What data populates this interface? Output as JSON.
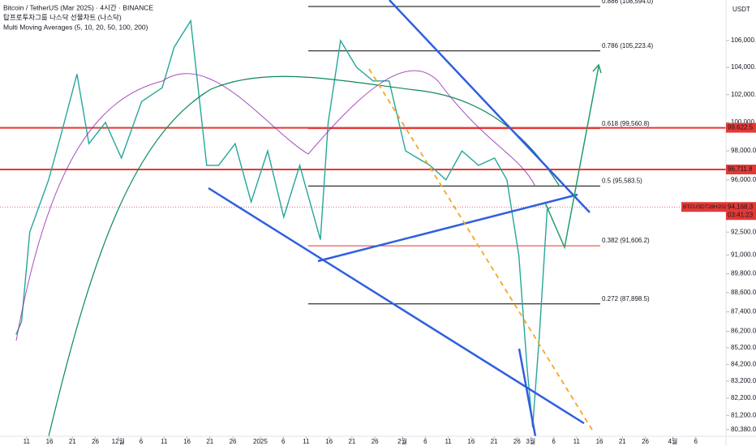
{
  "chart_data": {
    "type": "line",
    "title": "Bitcoin / TetherUS (Mar 2025) · 4시간 · BINANCE",
    "subtitle": "탑프로투자그룹 나스닥 선물차트 (나스닥)",
    "indicator": "Multi Moving Averages (5, 10, 20, 50, 100, 200)",
    "y_axis_label": "USDT",
    "log": true,
    "xlim": [
      -5.8,
      152.6
    ],
    "ylim": [
      80000,
      109100
    ],
    "xticks": [
      {
        "value": 0,
        "label": "11"
      },
      {
        "value": 5,
        "label": "16"
      },
      {
        "value": 10,
        "label": "21"
      },
      {
        "value": 15,
        "label": "26"
      },
      {
        "value": 20,
        "label": "12월"
      },
      {
        "value": 25,
        "label": "6"
      },
      {
        "value": 30,
        "label": "11"
      },
      {
        "value": 35,
        "label": "16"
      },
      {
        "value": 40,
        "label": "21"
      },
      {
        "value": 45,
        "label": "26"
      },
      {
        "value": 51,
        "label": "2025"
      },
      {
        "value": 56,
        "label": "6"
      },
      {
        "value": 61,
        "label": "11"
      },
      {
        "value": 66,
        "label": "16"
      },
      {
        "value": 71,
        "label": "21"
      },
      {
        "value": 76,
        "label": "26"
      },
      {
        "value": 82,
        "label": "2월"
      },
      {
        "value": 87,
        "label": "6"
      },
      {
        "value": 92,
        "label": "11"
      },
      {
        "value": 97,
        "label": "16"
      },
      {
        "value": 102,
        "label": "21"
      },
      {
        "value": 107,
        "label": "26"
      },
      {
        "value": 110,
        "label": "3월"
      },
      {
        "value": 115,
        "label": "6"
      },
      {
        "value": 120,
        "label": "11"
      },
      {
        "value": 125,
        "label": "16"
      },
      {
        "value": 130,
        "label": "21"
      },
      {
        "value": 135,
        "label": "26"
      },
      {
        "value": 141,
        "label": "4월"
      },
      {
        "value": 146,
        "label": "6"
      }
    ],
    "yticks": [
      {
        "value": 106000,
        "label": "106,000.0"
      },
      {
        "value": 104000,
        "label": "104,000.0"
      },
      {
        "value": 102000,
        "label": "102,000.0"
      },
      {
        "value": 100000,
        "label": "100,000.0"
      },
      {
        "value": 98000,
        "label": "98,000.0"
      },
      {
        "value": 96000,
        "label": "96,000.0"
      },
      {
        "value": 92500,
        "label": "92,500.0"
      },
      {
        "value": 91000,
        "label": "91,000.0"
      },
      {
        "value": 89800,
        "label": "89,800.0"
      },
      {
        "value": 88600,
        "label": "88,600.0"
      },
      {
        "value": 87400,
        "label": "87,400.0"
      },
      {
        "value": 86200,
        "label": "86,200.0"
      },
      {
        "value": 85200,
        "label": "85,200.0"
      },
      {
        "value": 84200,
        "label": "84,200.0"
      },
      {
        "value": 83200,
        "label": "83,200.0"
      },
      {
        "value": 82200,
        "label": "82,200.0"
      },
      {
        "value": 81200,
        "label": "81,200.0"
      },
      {
        "value": 80380,
        "label": "80,380.0"
      }
    ],
    "series": [
      {
        "name": "BTCUSDT",
        "color": "#26a69a",
        "x": [
          -2.3,
          -1.1,
          0.7,
          4.8,
          7.4,
          11,
          13.6,
          17.2,
          20.7,
          25.1,
          29.6,
          32.2,
          35.8,
          39.3,
          41.9,
          45.5,
          49,
          52.6,
          56.1,
          59.6,
          64.1,
          65.8,
          68.5,
          72,
          75.6,
          79.1,
          82.7,
          85.3,
          88,
          91.5,
          95,
          98.6,
          102.1,
          104.8,
          107.4,
          109.2,
          110.4,
          111.9,
          113.6,
          114.5
        ],
        "values": [
          86000,
          86800,
          92500,
          96000,
          99000,
          103500,
          98500,
          100000,
          97500,
          101500,
          102500,
          105500,
          107500,
          97000,
          97000,
          98500,
          94500,
          98000,
          93500,
          97000,
          92000,
          100000,
          106000,
          104000,
          103000,
          103000,
          98000,
          97500,
          97000,
          96000,
          98000,
          97000,
          97500,
          96000,
          91000,
          84000,
          80500,
          86000,
          94000,
          94168.3
        ]
      }
    ],
    "levels": [
      {
        "value": 99622.5,
        "label": "99,622.5"
      },
      {
        "value": 96711.8,
        "label": "96,711.8"
      }
    ],
    "fib_levels": [
      {
        "value": 108594.0,
        "label": "0.886 (108,594.0)",
        "color": "#000000"
      },
      {
        "value": 105223.4,
        "label": "0.786 (105,223.4)",
        "color": "#000000"
      },
      {
        "value": 99560.8,
        "label": "0.618 (99,560.8)",
        "color": "#e53935"
      },
      {
        "value": 95583.5,
        "label": "0.5 (95,583.5)",
        "color": "#000000"
      },
      {
        "value": 91606.2,
        "label": "0.382 (91,606.2)",
        "color": "#e53935"
      },
      {
        "value": 87898.5,
        "label": "0.272 (87,898.5)",
        "color": "#000000"
      }
    ],
    "last_price": {
      "symbol": "BTCUSDT28H2025",
      "value": 94168.3,
      "label": "94,168.3",
      "countdown": "03:41:23"
    }
  }
}
